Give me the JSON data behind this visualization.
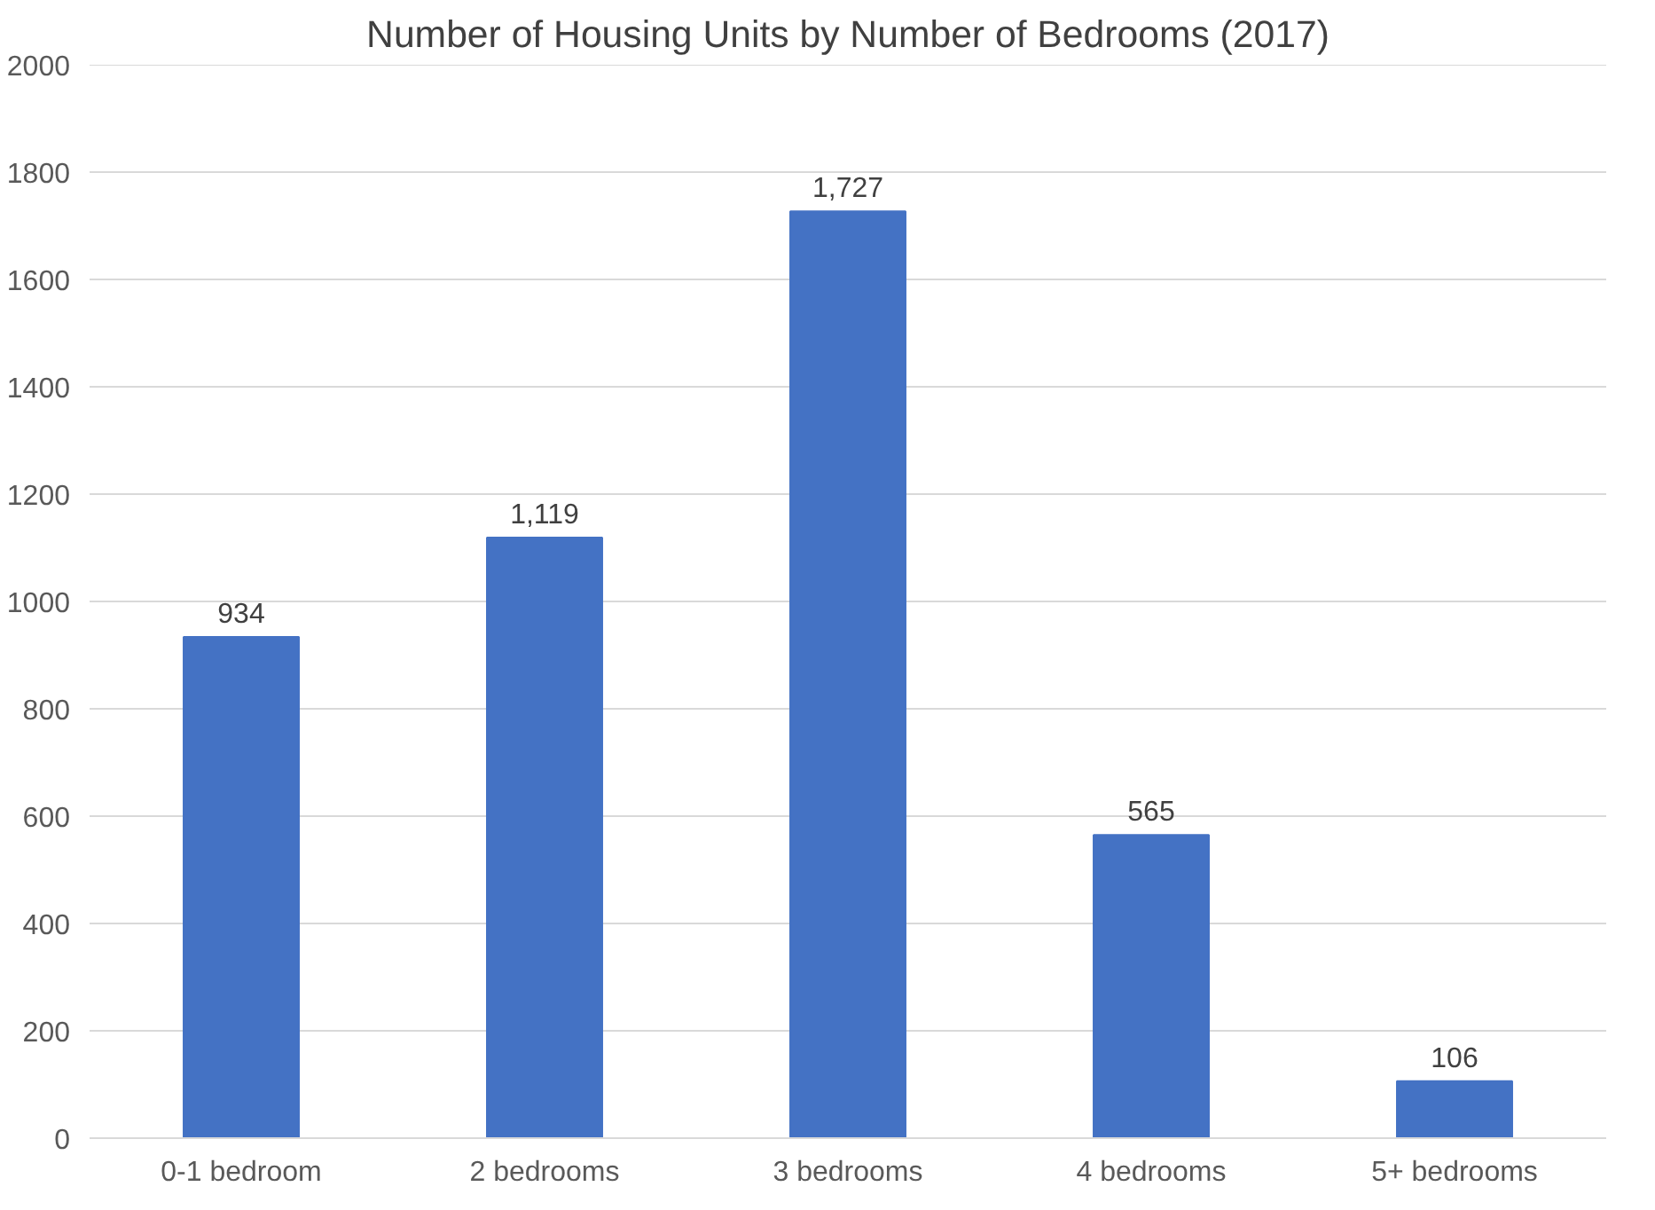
{
  "chart_data": {
    "type": "bar",
    "title": "Number of Housing Units by Number of Bedrooms (2017)",
    "categories": [
      "0-1 bedroom",
      "2 bedrooms",
      "3 bedrooms",
      "4 bedrooms",
      "5+ bedrooms"
    ],
    "values": [
      934,
      1119,
      1727,
      565,
      106
    ],
    "value_labels": [
      "934",
      "1,119",
      "1,727",
      "565",
      "106"
    ],
    "color": "#4472c4",
    "ylim": [
      0,
      2000
    ],
    "yticks": [
      0,
      200,
      400,
      600,
      800,
      1000,
      1200,
      1400,
      1600,
      1800,
      2000
    ],
    "grid": "y"
  }
}
